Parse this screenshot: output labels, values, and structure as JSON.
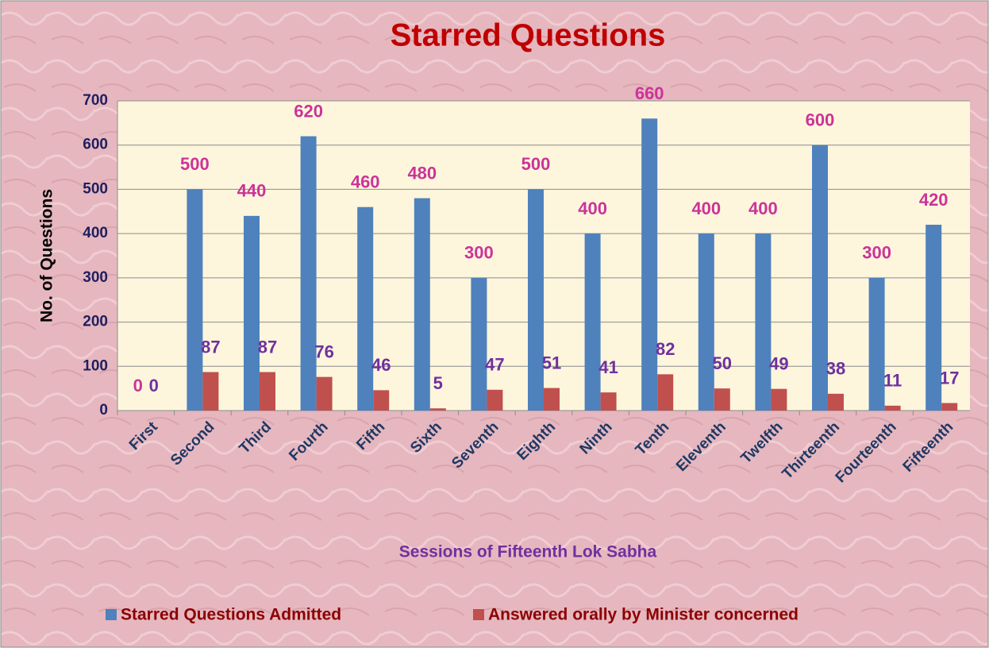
{
  "chart_data": {
    "type": "bar",
    "title": "Starred Questions",
    "x_label": "Sessions of Fifteenth Lok Sabha",
    "y_label": "No. of Questions",
    "categories": [
      "First",
      "Second",
      "Third",
      "Fourth",
      "Fifth",
      "Sixth",
      "Seventh",
      "Eighth",
      "Ninth",
      "Tenth",
      "Eleventh",
      "Twelfth",
      "Thirteenth",
      "Fourteenth",
      "Fifteenth"
    ],
    "series": [
      {
        "name": "Starred Questions Admitted",
        "color": "#4f81bd",
        "label_color": "#cc3399",
        "values": [
          0,
          500,
          440,
          620,
          460,
          480,
          300,
          500,
          400,
          660,
          400,
          400,
          600,
          300,
          420
        ]
      },
      {
        "name": "Answered orally by Minister concerned",
        "color": "#c0504d",
        "label_color": "#7030a0",
        "values": [
          0,
          87,
          87,
          76,
          46,
          5,
          47,
          51,
          41,
          82,
          50,
          49,
          38,
          11,
          17
        ]
      }
    ],
    "ylim": [
      0,
      700
    ],
    "yticks": [
      0,
      100,
      200,
      300,
      400,
      500,
      600,
      700
    ],
    "grid": true,
    "legend": "bottom"
  }
}
